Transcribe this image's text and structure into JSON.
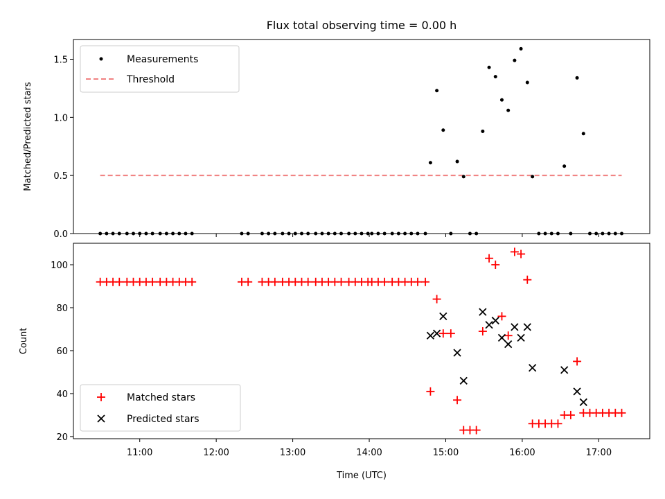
{
  "chart_data": [
    {
      "type": "scatter",
      "title": "Flux total observing time = 0.00 h",
      "ylabel": "Matched/Predicted stars",
      "xlabel": "",
      "ylim": [
        0,
        1.67
      ],
      "yticks": [
        0.0,
        0.5,
        1.0,
        1.5
      ],
      "ytick_labels": [
        "0.0",
        "0.5",
        "1.0",
        "1.5"
      ],
      "legend_position": "upper-left",
      "series": [
        {
          "name": "Measurements",
          "marker": "dot",
          "color": "#000000",
          "x": [
            "10:29",
            "10:34",
            "10:39",
            "10:44",
            "10:50",
            "10:55",
            "11:00",
            "11:05",
            "11:10",
            "11:16",
            "11:21",
            "11:26",
            "11:31",
            "11:36",
            "11:41",
            "12:20",
            "12:25",
            "12:36",
            "12:41",
            "12:46",
            "12:52",
            "12:57",
            "13:02",
            "13:07",
            "13:12",
            "13:18",
            "13:23",
            "13:28",
            "13:33",
            "13:38",
            "13:44",
            "13:49",
            "13:54",
            "13:59",
            "14:02",
            "14:07",
            "14:12",
            "14:18",
            "14:23",
            "14:28",
            "14:33",
            "14:38",
            "14:44",
            "14:48",
            "14:53",
            "14:58",
            "15:04",
            "15:09",
            "15:14",
            "15:19",
            "15:24",
            "15:29",
            "15:34",
            "15:39",
            "15:44",
            "15:49",
            "15:54",
            "15:59",
            "16:04",
            "16:08",
            "16:13",
            "16:18",
            "16:23",
            "16:28",
            "16:33",
            "16:38",
            "16:43",
            "16:48",
            "16:53",
            "16:58",
            "17:03",
            "17:08",
            "17:13",
            "17:18"
          ],
          "y": [
            0,
            0,
            0,
            0,
            0,
            0,
            0,
            0,
            0,
            0,
            0,
            0,
            0,
            0,
            0,
            0,
            0,
            0,
            0,
            0,
            0,
            0,
            0,
            0,
            0,
            0,
            0,
            0,
            0,
            0,
            0,
            0,
            0,
            0,
            0,
            0,
            0,
            0,
            0,
            0,
            0,
            0,
            0,
            0.61,
            1.23,
            0.89,
            0,
            0.62,
            0.49,
            0,
            0,
            0.88,
            1.43,
            1.35,
            1.15,
            1.06,
            1.49,
            1.59,
            1.3,
            0.49,
            0,
            0,
            0,
            0,
            0.58,
            0,
            1.34,
            0.86,
            0,
            0,
            0,
            0,
            0,
            0
          ]
        },
        {
          "name": "Threshold",
          "style": "dashed",
          "color": "#f08080",
          "x": [
            "10:29",
            "17:18"
          ],
          "y": [
            0.5,
            0.5
          ]
        }
      ]
    },
    {
      "type": "scatter",
      "title": "",
      "ylabel": "Count",
      "xlabel": "Time (UTC)",
      "ylim": [
        19,
        110
      ],
      "yticks": [
        20,
        40,
        60,
        80,
        100
      ],
      "ytick_labels": [
        "20",
        "40",
        "60",
        "80",
        "100"
      ],
      "xlim": [
        "10:08",
        "17:40"
      ],
      "xticks": [
        "11:00",
        "12:00",
        "13:00",
        "14:00",
        "15:00",
        "16:00",
        "17:00"
      ],
      "xtick_labels": [
        "11:00",
        "12:00",
        "13:00",
        "14:00",
        "15:00",
        "16:00",
        "17:00"
      ],
      "legend_position": "lower-left",
      "series": [
        {
          "name": "Matched stars",
          "marker": "plus",
          "color": "#ff0000",
          "x": [
            "10:29",
            "10:34",
            "10:39",
            "10:44",
            "10:50",
            "10:55",
            "11:00",
            "11:05",
            "11:10",
            "11:16",
            "11:21",
            "11:26",
            "11:31",
            "11:36",
            "11:41",
            "12:20",
            "12:25",
            "12:36",
            "12:41",
            "12:46",
            "12:52",
            "12:57",
            "13:02",
            "13:07",
            "13:12",
            "13:18",
            "13:23",
            "13:28",
            "13:33",
            "13:38",
            "13:44",
            "13:49",
            "13:54",
            "13:59",
            "14:02",
            "14:07",
            "14:12",
            "14:18",
            "14:23",
            "14:28",
            "14:33",
            "14:38",
            "14:44",
            "14:48",
            "14:53",
            "14:58",
            "15:04",
            "15:09",
            "15:14",
            "15:19",
            "15:24",
            "15:29",
            "15:34",
            "15:39",
            "15:44",
            "15:49",
            "15:54",
            "15:59",
            "16:04",
            "16:08",
            "16:13",
            "16:18",
            "16:23",
            "16:28",
            "16:33",
            "16:38",
            "16:43",
            "16:48",
            "16:53",
            "16:58",
            "17:03",
            "17:08",
            "17:13",
            "17:18"
          ],
          "y": [
            92,
            92,
            92,
            92,
            92,
            92,
            92,
            92,
            92,
            92,
            92,
            92,
            92,
            92,
            92,
            92,
            92,
            92,
            92,
            92,
            92,
            92,
            92,
            92,
            92,
            92,
            92,
            92,
            92,
            92,
            92,
            92,
            92,
            92,
            92,
            92,
            92,
            92,
            92,
            92,
            92,
            92,
            92,
            41,
            84,
            68,
            68,
            37,
            23,
            23,
            23,
            69,
            103,
            100,
            76,
            67,
            106,
            105,
            93,
            26,
            26,
            26,
            26,
            26,
            30,
            30,
            55,
            31,
            31,
            31,
            31,
            31,
            31,
            31
          ]
        },
        {
          "name": "Predicted stars",
          "marker": "x",
          "color": "#000000",
          "x": [
            "14:48",
            "14:53",
            "14:58",
            "15:09",
            "15:14",
            "15:29",
            "15:34",
            "15:39",
            "15:44",
            "15:49",
            "15:54",
            "15:59",
            "16:04",
            "16:08",
            "16:33",
            "16:43",
            "16:48"
          ],
          "y": [
            67,
            68,
            76,
            59,
            46,
            78,
            72,
            74,
            66,
            63,
            71,
            66,
            71,
            52,
            51,
            41,
            36
          ]
        }
      ]
    }
  ]
}
